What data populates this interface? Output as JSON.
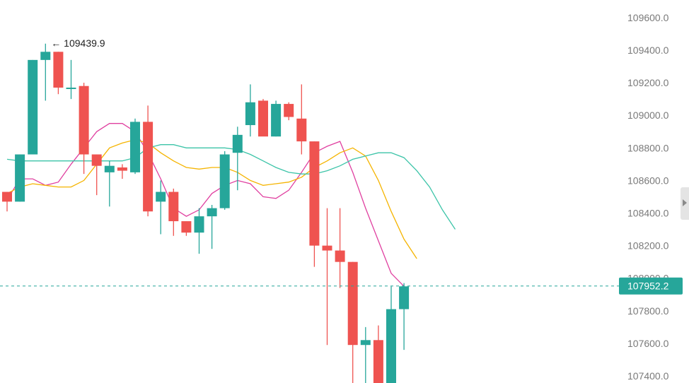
{
  "chart_data": {
    "type": "candlestick",
    "title": "",
    "xlabel": "",
    "ylabel": "",
    "ylim": [
      107330,
      109680
    ],
    "y_ticks": [
      "109600.0",
      "109400.0",
      "109200.0",
      "109000.0",
      "108800.0",
      "108600.0",
      "108400.0",
      "108200.0",
      "108000.0",
      "107800.0",
      "107600.0",
      "107400.0"
    ],
    "grid": false,
    "colors": {
      "up": "#26a69a",
      "down": "#ef5350",
      "ma_fast": "#e040a0",
      "ma_mid": "#f5b400",
      "ma_slow": "#3cc4a8",
      "last_price_line": "#26a69a"
    },
    "candles": [
      {
        "o": 108530,
        "h": 108530,
        "l": 108410,
        "c": 108470
      },
      {
        "o": 108470,
        "h": 108760,
        "l": 108470,
        "c": 108760
      },
      {
        "o": 108760,
        "h": 109340,
        "l": 108760,
        "c": 109340
      },
      {
        "o": 109340,
        "h": 109440,
        "l": 109090,
        "c": 109390
      },
      {
        "o": 109390,
        "h": 109390,
        "l": 109130,
        "c": 109170
      },
      {
        "o": 109170,
        "h": 109340,
        "l": 109100,
        "c": 109170
      },
      {
        "o": 109180,
        "h": 109200,
        "l": 108640,
        "c": 108760
      },
      {
        "o": 108760,
        "h": 108760,
        "l": 108510,
        "c": 108690
      },
      {
        "o": 108650,
        "h": 108720,
        "l": 108440,
        "c": 108690
      },
      {
        "o": 108680,
        "h": 108700,
        "l": 108610,
        "c": 108660
      },
      {
        "o": 108650,
        "h": 108980,
        "l": 108640,
        "c": 108960
      },
      {
        "o": 108960,
        "h": 109060,
        "l": 108380,
        "c": 108410
      },
      {
        "o": 108470,
        "h": 108600,
        "l": 108270,
        "c": 108530
      },
      {
        "o": 108530,
        "h": 108550,
        "l": 108260,
        "c": 108350
      },
      {
        "o": 108350,
        "h": 108350,
        "l": 108260,
        "c": 108280
      },
      {
        "o": 108280,
        "h": 108430,
        "l": 108150,
        "c": 108380
      },
      {
        "o": 108380,
        "h": 108450,
        "l": 108180,
        "c": 108430
      },
      {
        "o": 108430,
        "h": 108780,
        "l": 108420,
        "c": 108760
      },
      {
        "o": 108770,
        "h": 108930,
        "l": 108540,
        "c": 108880
      },
      {
        "o": 108940,
        "h": 109190,
        "l": 108870,
        "c": 109080
      },
      {
        "o": 109090,
        "h": 109100,
        "l": 108880,
        "c": 108870
      },
      {
        "o": 108870,
        "h": 109090,
        "l": 108870,
        "c": 109070
      },
      {
        "o": 109070,
        "h": 109080,
        "l": 108970,
        "c": 108990
      },
      {
        "o": 108980,
        "h": 109190,
        "l": 108760,
        "c": 108840
      },
      {
        "o": 108840,
        "h": 108840,
        "l": 108070,
        "c": 108200
      },
      {
        "o": 108200,
        "h": 108430,
        "l": 107590,
        "c": 108170
      },
      {
        "o": 108170,
        "h": 108430,
        "l": 107940,
        "c": 108100
      },
      {
        "o": 108100,
        "h": 108100,
        "l": 107320,
        "c": 107590
      },
      {
        "o": 107590,
        "h": 107700,
        "l": 107340,
        "c": 107620
      },
      {
        "o": 107620,
        "h": 107710,
        "l": 107330,
        "c": 107330
      },
      {
        "o": 107330,
        "h": 107950,
        "l": 107330,
        "c": 107810
      },
      {
        "o": 107810,
        "h": 107970,
        "l": 107560,
        "c": 107950
      }
    ],
    "series": [
      {
        "values": [
          108480,
          108610,
          108610,
          108570,
          108590,
          108700,
          108800,
          108900,
          108950,
          108950,
          108900,
          108770,
          108610,
          108430,
          108380,
          108420,
          108520,
          108570,
          108600,
          108580,
          108500,
          108490,
          108540,
          108650,
          108770,
          108810,
          108840,
          108650,
          108430,
          108230,
          108030,
          107950
        ]
      },
      {
        "values": [
          108520,
          108560,
          108580,
          108570,
          108560,
          108560,
          108600,
          108700,
          108800,
          108830,
          108850,
          108830,
          108770,
          108720,
          108680,
          108670,
          108680,
          108680,
          108650,
          108600,
          108570,
          108580,
          108590,
          108620,
          108680,
          108720,
          108770,
          108800,
          108750,
          108600,
          108410,
          108240,
          108120
        ]
      },
      {
        "values": [
          108730,
          108720,
          108720,
          108720,
          108720,
          108720,
          108720,
          108720,
          108720,
          108720,
          108740,
          108800,
          108820,
          108820,
          108800,
          108800,
          108800,
          108800,
          108790,
          108760,
          108720,
          108680,
          108650,
          108640,
          108640,
          108660,
          108690,
          108730,
          108750,
          108770,
          108770,
          108740,
          108660,
          108560,
          108420,
          108300
        ]
      }
    ],
    "annotations": [
      {
        "text": "← 109439.9",
        "x_index": 3,
        "y": 109439.9
      }
    ],
    "last_price": {
      "value": 107952.2,
      "label": "107952.2"
    }
  }
}
